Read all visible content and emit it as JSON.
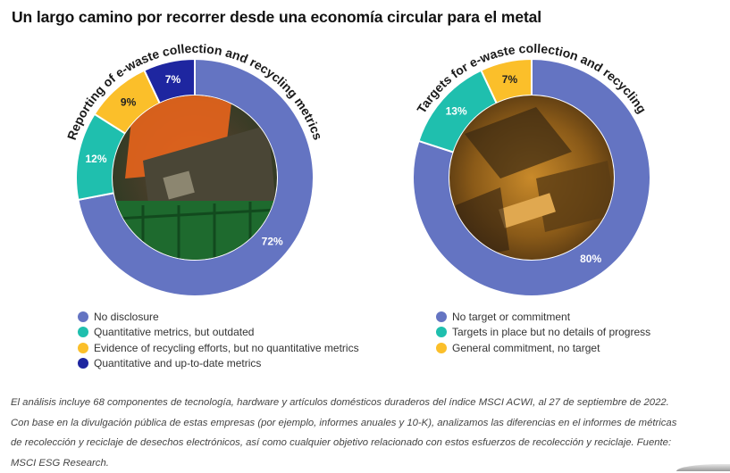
{
  "title": "Un largo camino por recorrer desde una economía circular para el metal",
  "chart_data": [
    {
      "type": "pie",
      "variant": "donut",
      "title": "Reporting of e-waste collection and recycling metrics",
      "categories": [
        "No disclosure",
        "Quantitative metrics, but outdated",
        "Evidence of recycling efforts, but no quantitative metrics",
        "Quantitative and up-to-date metrics"
      ],
      "values": [
        72,
        12,
        9,
        7
      ],
      "labels": [
        "72%",
        "12%",
        "9%",
        "7%"
      ],
      "colors": [
        "#6474c2",
        "#1fbfae",
        "#fbbf2a",
        "#1e26a0"
      ],
      "label_colors": [
        "#ffffff",
        "#ffffff",
        "#222222",
        "#ffffff"
      ],
      "legend_position": "bottom-left",
      "center_image": "circuit board in green crate photo"
    },
    {
      "type": "pie",
      "variant": "donut",
      "title": "Targets for e-waste collection and recycling",
      "categories": [
        "No target or commitment",
        "Targets in place but no details of progress",
        "General commitment, no target"
      ],
      "values": [
        80,
        13,
        7
      ],
      "labels": [
        "80%",
        "13%",
        "7%"
      ],
      "colors": [
        "#6474c2",
        "#1fbfae",
        "#fbbf2a"
      ],
      "label_colors": [
        "#ffffff",
        "#ffffff",
        "#222222"
      ],
      "legend_position": "bottom-left",
      "center_image": "pile of electronic waste photo"
    }
  ],
  "note": {
    "lines": [
      "El análisis incluye 68 componentes de tecnología, hardware y artículos domésticos duraderos del índice MSCI ACWI, al 27 de septiembre de 2022.",
      "Con base en la divulgación pública de estas empresas (por ejemplo, informes anuales y 10-K), analizamos las diferencias en el informes de métricas",
      "de recolección y reciclaje de desechos electrónicos, así como cualquier objetivo relacionado con estos esfuerzos de recolección y reciclaje. Fuente:",
      "MSCI ESG Research."
    ]
  }
}
